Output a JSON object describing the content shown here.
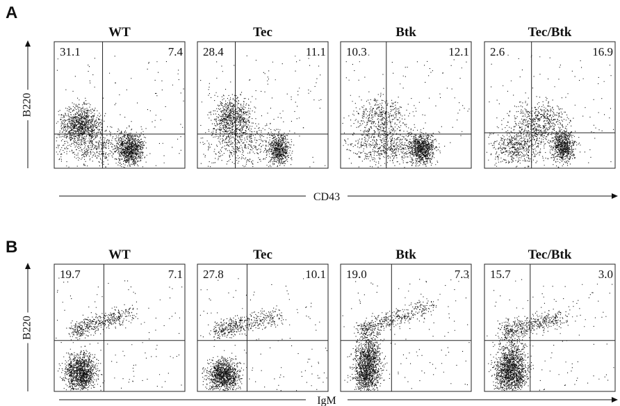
{
  "panels": [
    {
      "label": "A",
      "y_axis": "B220",
      "x_axis": "CD43",
      "plots": [
        {
          "title": "WT",
          "upper_left": "31.1",
          "upper_right": "7.4"
        },
        {
          "title": "Tec",
          "upper_left": "28.4",
          "upper_right": "11.1"
        },
        {
          "title": "Btk",
          "upper_left": "10.3",
          "upper_right": "12.1"
        },
        {
          "title": "Tec/Btk",
          "upper_left": "2.6",
          "upper_right": "16.9"
        }
      ]
    },
    {
      "label": "B",
      "y_axis": "B220",
      "x_axis": "IgM",
      "plots": [
        {
          "title": "WT",
          "upper_left": "19.7",
          "upper_right": "7.1"
        },
        {
          "title": "Tec",
          "upper_left": "27.8",
          "upper_right": "10.1"
        },
        {
          "title": "Btk",
          "upper_left": "19.0",
          "upper_right": "7.3"
        },
        {
          "title": "Tec/Btk",
          "upper_left": "15.7",
          "upper_right": "3.0"
        }
      ]
    }
  ]
}
